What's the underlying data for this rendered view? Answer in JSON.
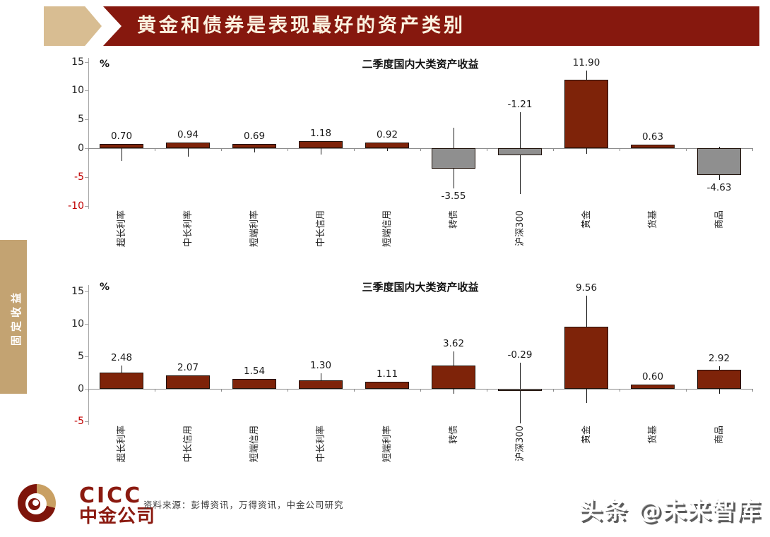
{
  "header": {
    "title": "黄金和债券是表现最好的资产类别"
  },
  "sidebar": {
    "label": "固定收益"
  },
  "colors": {
    "banner": "#86180E",
    "header_arrow_tan": "#D8BD92",
    "sidebar_tan": "#C3A372",
    "bar_maroon": "#7E2309",
    "bar_gray": "#8F8F8F",
    "negative_tick": "#C00000",
    "logo_maroon": "#7E150B",
    "logo_tan": "#C9A063"
  },
  "chart_data": [
    {
      "type": "bar",
      "title": "二季度国内大类资产收益",
      "unit_label": "%",
      "categories": [
        "超长利率",
        "中长利率",
        "短端利率",
        "中长信用",
        "短端信用",
        "转债",
        "沪深300",
        "黄金",
        "货基",
        "商品"
      ],
      "values": [
        0.7,
        0.94,
        0.69,
        1.18,
        0.92,
        -3.55,
        -1.21,
        11.9,
        0.63,
        -4.63
      ],
      "bar_colors": [
        "maroon",
        "maroon",
        "maroon",
        "maroon",
        "maroon",
        "gray",
        "gray",
        "maroon",
        "maroon",
        "gray"
      ],
      "whisker_hi": [
        null,
        null,
        null,
        null,
        null,
        3.6,
        6.2,
        13.5,
        null,
        0.3
      ],
      "whisker_lo": [
        -2.2,
        -1.5,
        -0.7,
        -1.1,
        -0.5,
        -7.0,
        -8.0,
        -1.0,
        null,
        -5.5
      ],
      "label_side": [
        "above",
        "above",
        "above",
        "above",
        "above",
        "below",
        "above",
        "above",
        "above",
        "below"
      ],
      "yticks": [
        15,
        10,
        5,
        0,
        -5,
        -10
      ],
      "ylim": [
        -10,
        15
      ],
      "grid": false,
      "legend": false
    },
    {
      "type": "bar",
      "title": "三季度国内大类资产收益",
      "unit_label": "%",
      "categories": [
        "超长利率",
        "中长信用",
        "短端信用",
        "中长利率",
        "短端利率",
        "转债",
        "沪深300",
        "黄金",
        "货基",
        "商品"
      ],
      "values": [
        2.48,
        2.07,
        1.54,
        1.3,
        1.11,
        3.62,
        -0.29,
        9.56,
        0.6,
        2.92
      ],
      "bar_colors": [
        "maroon",
        "maroon",
        "maroon",
        "maroon",
        "maroon",
        "maroon",
        "gray",
        "maroon",
        "maroon",
        "maroon"
      ],
      "whisker_hi": [
        3.6,
        null,
        null,
        2.4,
        null,
        5.8,
        4.0,
        14.3,
        null,
        3.5
      ],
      "whisker_lo": [
        1.5,
        null,
        null,
        null,
        null,
        -0.8,
        -5.3,
        -2.2,
        null,
        -0.8
      ],
      "label_side": [
        "above",
        "above",
        "above",
        "above",
        "above",
        "above",
        "above",
        "above",
        "above",
        "above"
      ],
      "yticks": [
        15,
        10,
        5,
        0,
        -5
      ],
      "ylim": [
        -5,
        15
      ],
      "grid": false,
      "legend": false
    }
  ],
  "footer": {
    "logo_top": "CICC",
    "logo_bottom": "中金公司",
    "source": "资料来源：彭博资讯，万得资讯，中金公司研究",
    "watermark": "头条 @未来智库"
  }
}
